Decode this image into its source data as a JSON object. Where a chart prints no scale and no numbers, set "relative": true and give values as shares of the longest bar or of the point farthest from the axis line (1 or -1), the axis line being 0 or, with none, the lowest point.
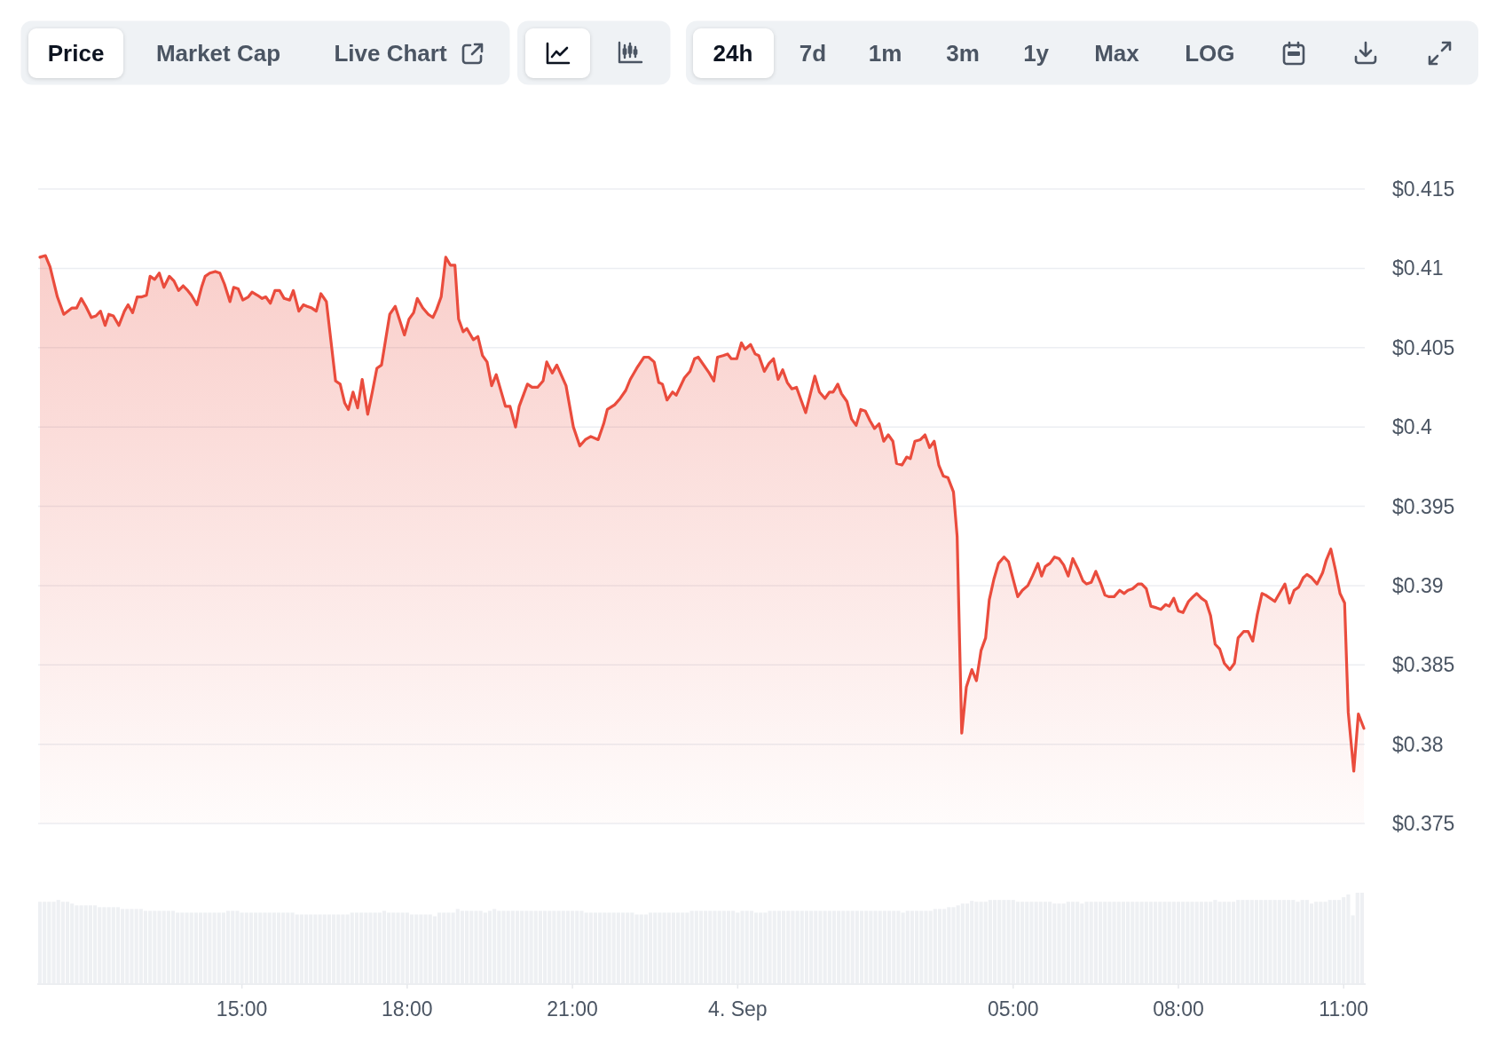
{
  "chart_data": [
    {
      "type": "area",
      "annotations": [
        "Price",
        "Market Cap",
        "Live Chart",
        "24h",
        "7d",
        "1m",
        "3m",
        "1y",
        "Max",
        "LOG"
      ],
      "color": "#ea4c3d",
      "xlim": [
        "--09-03T11:20",
        "--09-04T11:22"
      ],
      "ylim": [
        0.375,
        0.415
      ],
      "yticks": [
        {
          "value": 0.375,
          "label": "$0.375"
        },
        {
          "value": 0.38,
          "label": "$0.38"
        },
        {
          "value": 0.385,
          "label": "$0.385"
        },
        {
          "value": 0.39,
          "label": "$0.39"
        },
        {
          "value": 0.395,
          "label": "$0.395"
        },
        {
          "value": 0.4,
          "label": "$0.4"
        },
        {
          "value": 0.405,
          "label": "$0.405"
        },
        {
          "value": 0.41,
          "label": "$0.41"
        },
        {
          "value": 0.415,
          "label": "$0.415"
        }
      ],
      "grid": "y",
      "tick_labels": "y",
      "x": [
        "--09-03T11:20",
        "--09-03T11:26",
        "--09-03T11:31",
        "--09-03T11:39",
        "--09-03T11:46",
        "--09-03T11:55",
        "--09-03T12:00",
        "--09-03T12:05",
        "--09-03T12:10",
        "--09-03T12:16",
        "--09-03T12:21",
        "--09-03T12:26",
        "--09-03T12:31",
        "--09-03T12:35",
        "--09-03T12:40",
        "--09-03T12:46",
        "--09-03T12:52",
        "--09-03T12:56",
        "--09-03T13:01",
        "--09-03T13:06",
        "--09-03T13:11",
        "--09-03T13:16",
        "--09-03T13:20",
        "--09-03T13:25",
        "--09-03T13:30",
        "--09-03T13:35",
        "--09-03T13:41",
        "--09-03T13:46",
        "--09-03T13:51",
        "--09-03T13:56",
        "--09-03T14:01",
        "--09-03T14:05",
        "--09-03T14:11",
        "--09-03T14:16",
        "--09-03T14:20",
        "--09-03T14:25",
        "--09-03T14:31",
        "--09-03T14:36",
        "--09-03T14:41",
        "--09-03T14:47",
        "--09-03T14:51",
        "--09-03T14:56",
        "--09-03T15:01",
        "--09-03T15:07",
        "--09-03T15:11",
        "--09-03T15:17",
        "--09-03T15:22",
        "--09-03T15:26",
        "--09-03T15:31",
        "--09-03T15:36",
        "--09-03T15:41",
        "--09-03T15:46",
        "--09-03T15:52",
        "--09-03T15:56",
        "--09-03T16:02",
        "--09-03T16:07",
        "--09-03T16:11",
        "--09-03T16:16",
        "--09-03T16:21",
        "--09-03T16:26",
        "--09-03T16:32",
        "--09-03T16:37",
        "--09-03T16:42",
        "--09-03T16:47",
        "--09-03T16:52",
        "--09-03T16:56",
        "--09-03T17:01",
        "--09-03T17:06",
        "--09-03T17:11",
        "--09-03T17:17",
        "--09-03T17:22",
        "--09-03T17:27",
        "--09-03T17:32",
        "--09-03T17:41",
        "--09-03T17:47",
        "--09-03T17:57",
        "--09-03T18:02",
        "--09-03T18:07",
        "--09-03T18:11",
        "--09-03T18:17",
        "--09-03T18:23",
        "--09-03T18:28",
        "--09-03T18:32",
        "--09-03T18:37",
        "--09-03T18:42",
        "--09-03T18:47",
        "--09-03T18:52",
        "--09-03T18:56",
        "--09-03T19:01",
        "--09-03T19:05",
        "--09-03T19:12",
        "--09-03T19:17",
        "--09-03T19:22",
        "--09-03T19:27",
        "--09-03T19:32",
        "--09-03T19:37",
        "--09-03T19:47",
        "--09-03T19:52",
        "--09-03T19:58",
        "--09-03T20:02",
        "--09-03T20:11",
        "--09-03T20:16",
        "--09-03T20:22",
        "--09-03T20:28",
        "--09-03T20:32",
        "--09-03T20:38",
        "--09-03T20:43",
        "--09-03T20:53",
        "--09-03T21:01",
        "--09-03T21:08",
        "--09-03T21:14",
        "--09-03T21:20",
        "--09-03T21:28",
        "--09-03T21:34",
        "--09-03T21:38",
        "--09-03T21:46",
        "--09-03T21:52",
        "--09-03T21:58",
        "--09-03T22:03",
        "--09-03T22:10",
        "--09-03T22:18",
        "--09-03T22:23",
        "--09-03T22:29",
        "--09-03T22:34",
        "--09-03T22:38",
        "--09-03T22:43",
        "--09-03T22:49",
        "--09-03T22:53",
        "--09-03T23:02",
        "--09-03T23:08",
        "--09-03T23:13",
        "--09-03T23:17",
        "--09-03T23:29",
        "--09-03T23:34",
        "--09-03T23:38",
        "--09-03T23:44",
        "--09-03T23:49",
        "--09-03T23:53",
        "--09-03T23:59",
        "--09-04T00:04",
        "--09-04T00:08",
        "--09-04T00:14",
        "--09-04T00:19",
        "--09-04T00:23",
        "--09-04T00:29",
        "--09-04T00:34",
        "--09-04T00:39",
        "--09-04T00:44",
        "--09-04T00:49",
        "--09-04T00:54",
        "--09-04T00:59",
        "--09-04T01:04",
        "--09-04T01:14",
        "--09-04T01:24",
        "--09-04T01:29",
        "--09-04T01:35",
        "--09-04T01:40",
        "--09-04T01:44",
        "--09-04T01:49",
        "--09-04T01:53",
        "--09-04T01:59",
        "--09-04T02:04",
        "--09-04T02:09",
        "--09-04T02:14",
        "--09-04T02:19",
        "--09-04T02:24",
        "--09-04T02:29",
        "--09-04T02:34",
        "--09-04T02:39",
        "--09-04T02:44",
        "--09-04T02:49",
        "--09-04T02:53",
        "--09-04T02:59",
        "--09-04T03:04",
        "--09-04T03:08",
        "--09-04T03:13",
        "--09-04T03:19",
        "--09-04T03:24",
        "--09-04T03:29",
        "--09-04T03:34",
        "--09-04T03:39",
        "--09-04T03:44",
        "--09-04T03:49",
        "--09-04T03:55",
        "--09-04T03:59",
        "--09-04T04:04",
        "--09-04T04:09",
        "--09-04T04:15",
        "--09-04T04:20",
        "--09-04T04:25",
        "--09-04T04:30",
        "--09-04T04:34",
        "--09-04T04:39",
        "--09-04T04:44",
        "--09-04T04:50",
        "--09-04T04:55",
        "--09-04T05:05",
        "--09-04T05:10",
        "--09-04T05:16",
        "--09-04T05:21",
        "--09-04T05:27",
        "--09-04T05:31",
        "--09-04T05:35",
        "--09-04T05:40",
        "--09-04T05:45",
        "--09-04T05:50",
        "--09-04T05:55",
        "--09-04T06:00",
        "--09-04T06:05",
        "--09-04T06:11",
        "--09-04T06:16",
        "--09-04T06:20",
        "--09-04T06:25",
        "--09-04T06:30",
        "--09-04T06:35",
        "--09-04T06:40",
        "--09-04T06:44",
        "--09-04T06:50",
        "--09-04T06:56",
        "--09-04T07:01",
        "--09-04T07:05",
        "--09-04T07:10",
        "--09-04T07:16",
        "--09-04T07:20",
        "--09-04T07:25",
        "--09-04T07:30",
        "--09-04T07:36",
        "--09-04T07:41",
        "--09-04T07:46",
        "--09-04T07:50",
        "--09-04T07:55",
        "--09-04T08:00",
        "--09-04T08:05",
        "--09-04T08:11",
        "--09-04T08:16",
        "--09-04T08:20",
        "--09-04T08:25",
        "--09-04T08:30",
        "--09-04T08:35",
        "--09-04T08:40",
        "--09-04T08:45",
        "--09-04T08:50",
        "--09-04T08:56",
        "--09-04T09:01",
        "--09-04T09:05",
        "--09-04T09:11",
        "--09-04T09:16",
        "--09-04T09:21",
        "--09-04T09:26",
        "--09-04T09:31",
        "--09-04T09:35",
        "--09-04T09:45",
        "--09-04T09:51",
        "--09-04T09:56",
        "--09-04T10:01",
        "--09-04T10:06",
        "--09-04T10:11",
        "--09-04T10:16",
        "--09-04T10:20",
        "--09-04T10:25",
        "--09-04T10:31",
        "--09-04T10:37",
        "--09-04T10:41",
        "--09-04T10:46",
        "--09-04T10:51",
        "--09-04T10:56",
        "--09-04T11:01",
        "--09-04T11:05",
        "--09-04T11:11",
        "--09-04T11:16",
        "--09-04T11:22"
      ],
      "values": [
        0.4107,
        0.4108,
        0.4101,
        0.4082,
        0.4071,
        0.4075,
        0.4075,
        0.4081,
        0.4076,
        0.4069,
        0.407,
        0.4073,
        0.4064,
        0.4071,
        0.407,
        0.4064,
        0.4073,
        0.4077,
        0.4072,
        0.4082,
        0.4082,
        0.4083,
        0.4095,
        0.4093,
        0.4097,
        0.4088,
        0.4095,
        0.4092,
        0.4086,
        0.4089,
        0.4086,
        0.4083,
        0.4077,
        0.4088,
        0.4095,
        0.4097,
        0.4098,
        0.4097,
        0.409,
        0.4079,
        0.4088,
        0.4087,
        0.408,
        0.4082,
        0.4085,
        0.4083,
        0.4081,
        0.4082,
        0.4078,
        0.4086,
        0.4086,
        0.4081,
        0.408,
        0.4086,
        0.4073,
        0.4077,
        0.4076,
        0.4075,
        0.4073,
        0.4084,
        0.4079,
        0.4054,
        0.4029,
        0.4027,
        0.4015,
        0.4011,
        0.4022,
        0.4012,
        0.403,
        0.4008,
        0.4022,
        0.4037,
        0.4039,
        0.4071,
        0.4076,
        0.4058,
        0.4068,
        0.4072,
        0.4081,
        0.4075,
        0.4071,
        0.4069,
        0.4074,
        0.4082,
        0.4107,
        0.4102,
        0.4102,
        0.4068,
        0.406,
        0.4062,
        0.4055,
        0.4057,
        0.4045,
        0.4041,
        0.4026,
        0.4033,
        0.4013,
        0.4013,
        0.4,
        0.4013,
        0.4027,
        0.4025,
        0.4025,
        0.4029,
        0.4041,
        0.4034,
        0.4039,
        0.4026,
        0.4,
        0.3988,
        0.3992,
        0.3994,
        0.3992,
        0.4002,
        0.4011,
        0.4014,
        0.4018,
        0.4023,
        0.403,
        0.4037,
        0.4044,
        0.4044,
        0.4041,
        0.4028,
        0.4027,
        0.4017,
        0.4022,
        0.402,
        0.4031,
        0.4035,
        0.4043,
        0.4044,
        0.4034,
        0.4029,
        0.4044,
        0.4045,
        0.4046,
        0.4043,
        0.4043,
        0.4053,
        0.4049,
        0.4052,
        0.4046,
        0.4045,
        0.4035,
        0.404,
        0.4043,
        0.403,
        0.4036,
        0.4028,
        0.4024,
        0.4025,
        0.4009,
        0.4032,
        0.4022,
        0.4018,
        0.4022,
        0.4022,
        0.4027,
        0.4021,
        0.4016,
        0.4005,
        0.4001,
        0.4011,
        0.401,
        0.4004,
        0.3999,
        0.4002,
        0.3991,
        0.3995,
        0.3991,
        0.3977,
        0.3976,
        0.3981,
        0.398,
        0.3991,
        0.3992,
        0.3995,
        0.3987,
        0.3991,
        0.3976,
        0.3969,
        0.3968,
        0.3959,
        0.3931,
        0.3807,
        0.3836,
        0.3847,
        0.384,
        0.3859,
        0.3867,
        0.3891,
        0.3904,
        0.3914,
        0.3918,
        0.3915,
        0.3893,
        0.3897,
        0.39,
        0.3906,
        0.3914,
        0.3906,
        0.3912,
        0.3914,
        0.3918,
        0.3917,
        0.3913,
        0.3906,
        0.3917,
        0.391,
        0.3903,
        0.3901,
        0.3902,
        0.3909,
        0.3902,
        0.3894,
        0.3893,
        0.3893,
        0.3897,
        0.3895,
        0.3897,
        0.3898,
        0.3901,
        0.3901,
        0.3898,
        0.3887,
        0.3886,
        0.3885,
        0.3888,
        0.3887,
        0.3892,
        0.3884,
        0.3883,
        0.389,
        0.3893,
        0.3895,
        0.3892,
        0.389,
        0.3881,
        0.3863,
        0.386,
        0.3851,
        0.3847,
        0.3851,
        0.3867,
        0.3871,
        0.3871,
        0.3865,
        0.3882,
        0.3895,
        0.3894,
        0.389,
        0.3896,
        0.3901,
        0.3889,
        0.3897,
        0.3899,
        0.3905,
        0.3907,
        0.3905,
        0.3901,
        0.3908,
        0.3916,
        0.3923,
        0.391,
        0.3895,
        0.3889,
        0.382,
        0.3783,
        0.3819,
        0.381
      ]
    },
    {
      "type": "bar",
      "relative": true,
      "color": "#eef0f3",
      "tick_labels": "x",
      "xlim": [
        "--09-03T11:20",
        "--09-04T11:22"
      ],
      "xticks": [
        {
          "value": "--09-03T15:00",
          "label": "15:00"
        },
        {
          "value": "--09-03T18:00",
          "label": "18:00"
        },
        {
          "value": "--09-03T21:00",
          "label": "21:00"
        },
        {
          "value": "--09-04",
          "label": "4. Sep"
        },
        {
          "value": "--09-04T05:00",
          "label": "05:00"
        },
        {
          "value": "--09-04T08:00",
          "label": "08:00"
        },
        {
          "value": "--09-04T11:00",
          "label": "11:00"
        }
      ],
      "x": [
        "--09-03T11:20",
        "--09-03T11:25",
        "--09-03T11:30",
        "--09-03T11:35",
        "--09-03T11:40",
        "--09-03T11:45",
        "--09-03T11:50",
        "--09-03T11:55",
        "--09-03T12:00",
        "--09-03T12:05",
        "--09-03T12:10",
        "--09-03T12:15",
        "--09-03T12:20",
        "--09-03T12:25",
        "--09-03T12:30",
        "--09-03T12:35",
        "--09-03T12:40",
        "--09-03T12:45",
        "--09-03T12:50",
        "--09-03T12:55",
        "--09-03T13:00",
        "--09-03T13:05",
        "--09-03T13:10",
        "--09-03T13:15",
        "--09-03T13:20",
        "--09-03T13:25",
        "--09-03T13:30",
        "--09-03T13:35",
        "--09-03T13:40",
        "--09-03T13:45",
        "--09-03T13:50",
        "--09-03T13:55",
        "--09-03T14:00",
        "--09-03T14:05",
        "--09-03T14:10",
        "--09-03T14:15",
        "--09-03T14:20",
        "--09-03T14:25",
        "--09-03T14:30",
        "--09-03T14:35",
        "--09-03T14:40",
        "--09-03T14:45",
        "--09-03T14:50",
        "--09-03T14:55",
        "--09-03T15:00",
        "--09-03T15:05",
        "--09-03T15:10",
        "--09-03T15:15",
        "--09-03T15:20",
        "--09-03T15:25",
        "--09-03T15:30",
        "--09-03T15:35",
        "--09-03T15:40",
        "--09-03T15:45",
        "--09-03T15:50",
        "--09-03T15:55",
        "--09-03T16:00",
        "--09-03T16:05",
        "--09-03T16:10",
        "--09-03T16:15",
        "--09-03T16:20",
        "--09-03T16:25",
        "--09-03T16:30",
        "--09-03T16:35",
        "--09-03T16:40",
        "--09-03T16:45",
        "--09-03T16:50",
        "--09-03T16:55",
        "--09-03T17:00",
        "--09-03T17:05",
        "--09-03T17:10",
        "--09-03T17:15",
        "--09-03T17:20",
        "--09-03T17:25",
        "--09-03T17:30",
        "--09-03T17:35",
        "--09-03T17:40",
        "--09-03T17:45",
        "--09-03T17:50",
        "--09-03T17:55",
        "--09-03T18:00",
        "--09-03T18:05",
        "--09-03T18:10",
        "--09-03T18:15",
        "--09-03T18:20",
        "--09-03T18:25",
        "--09-03T18:30",
        "--09-03T18:35",
        "--09-03T18:40",
        "--09-03T18:45",
        "--09-03T18:50",
        "--09-03T18:55",
        "--09-03T19:00",
        "--09-03T19:05",
        "--09-03T19:10",
        "--09-03T19:15",
        "--09-03T19:20",
        "--09-03T19:25",
        "--09-03T19:30",
        "--09-03T19:35",
        "--09-03T19:40",
        "--09-03T19:45",
        "--09-03T19:50",
        "--09-03T19:55",
        "--09-03T20:00",
        "--09-03T20:05",
        "--09-03T20:10",
        "--09-03T20:15",
        "--09-03T20:20",
        "--09-03T20:25",
        "--09-03T20:30",
        "--09-03T20:35",
        "--09-03T20:40",
        "--09-03T20:45",
        "--09-03T20:50",
        "--09-03T20:55",
        "--09-03T21:00",
        "--09-03T21:05",
        "--09-03T21:10",
        "--09-03T21:15",
        "--09-03T21:20",
        "--09-03T21:25",
        "--09-03T21:30",
        "--09-03T21:35",
        "--09-03T21:40",
        "--09-03T21:45",
        "--09-03T21:50",
        "--09-03T21:55",
        "--09-03T22:00",
        "--09-03T22:05",
        "--09-03T22:10",
        "--09-03T22:15",
        "--09-03T22:20",
        "--09-03T22:25",
        "--09-03T22:30",
        "--09-03T22:35",
        "--09-03T22:40",
        "--09-03T22:45",
        "--09-03T22:50",
        "--09-03T22:55",
        "--09-03T23:00",
        "--09-03T23:05",
        "--09-03T23:10",
        "--09-03T23:15",
        "--09-03T23:20",
        "--09-03T23:25",
        "--09-03T23:30",
        "--09-03T23:35",
        "--09-03T23:40",
        "--09-03T23:45",
        "--09-03T23:50",
        "--09-03T23:55",
        "--09-04T00:00",
        "--09-04T00:05",
        "--09-04T00:10",
        "--09-04T00:15",
        "--09-04T00:20",
        "--09-04T00:25",
        "--09-04T00:30",
        "--09-04T00:35",
        "--09-04T00:40",
        "--09-04T00:45",
        "--09-04T00:50",
        "--09-04T00:55",
        "--09-04T01:00",
        "--09-04T01:05",
        "--09-04T01:10",
        "--09-04T01:15",
        "--09-04T01:20",
        "--09-04T01:25",
        "--09-04T01:30",
        "--09-04T01:35",
        "--09-04T01:40",
        "--09-04T01:45",
        "--09-04T01:50",
        "--09-04T01:55",
        "--09-04T02:00",
        "--09-04T02:05",
        "--09-04T02:10",
        "--09-04T02:15",
        "--09-04T02:20",
        "--09-04T02:25",
        "--09-04T02:30",
        "--09-04T02:35",
        "--09-04T02:40",
        "--09-04T02:45",
        "--09-04T02:50",
        "--09-04T02:55",
        "--09-04T03:00",
        "--09-04T03:05",
        "--09-04T03:10",
        "--09-04T03:15",
        "--09-04T03:20",
        "--09-04T03:25",
        "--09-04T03:30",
        "--09-04T03:35",
        "--09-04T03:40",
        "--09-04T03:45",
        "--09-04T03:50",
        "--09-04T03:55",
        "--09-04T04:00",
        "--09-04T04:05",
        "--09-04T04:10",
        "--09-04T04:15",
        "--09-04T04:20",
        "--09-04T04:25",
        "--09-04T04:30",
        "--09-04T04:35",
        "--09-04T04:40",
        "--09-04T04:45",
        "--09-04T04:50",
        "--09-04T04:55",
        "--09-04T05:00",
        "--09-04T05:05",
        "--09-04T05:10",
        "--09-04T05:15",
        "--09-04T05:20",
        "--09-04T05:25",
        "--09-04T05:30",
        "--09-04T05:35",
        "--09-04T05:40",
        "--09-04T05:45",
        "--09-04T05:50",
        "--09-04T05:55",
        "--09-04T06:00",
        "--09-04T06:05",
        "--09-04T06:10",
        "--09-04T06:15",
        "--09-04T06:20",
        "--09-04T06:25",
        "--09-04T06:30",
        "--09-04T06:35",
        "--09-04T06:40",
        "--09-04T06:45",
        "--09-04T06:50",
        "--09-04T06:55",
        "--09-04T07:00",
        "--09-04T07:05",
        "--09-04T07:10",
        "--09-04T07:15",
        "--09-04T07:20",
        "--09-04T07:25",
        "--09-04T07:30",
        "--09-04T07:35",
        "--09-04T07:40",
        "--09-04T07:45",
        "--09-04T07:50",
        "--09-04T07:55",
        "--09-04T08:00",
        "--09-04T08:05",
        "--09-04T08:10",
        "--09-04T08:15",
        "--09-04T08:20",
        "--09-04T08:25",
        "--09-04T08:30",
        "--09-04T08:35",
        "--09-04T08:40",
        "--09-04T08:45",
        "--09-04T08:50",
        "--09-04T08:55",
        "--09-04T09:00",
        "--09-04T09:05",
        "--09-04T09:10",
        "--09-04T09:15",
        "--09-04T09:20",
        "--09-04T09:25",
        "--09-04T09:30",
        "--09-04T09:35",
        "--09-04T09:40",
        "--09-04T09:45",
        "--09-04T09:50",
        "--09-04T09:55",
        "--09-04T10:00",
        "--09-04T10:05",
        "--09-04T10:10",
        "--09-04T10:15",
        "--09-04T10:20",
        "--09-04T10:25",
        "--09-04T10:30",
        "--09-04T10:35",
        "--09-04T10:40",
        "--09-04T10:45",
        "--09-04T10:50",
        "--09-04T10:55",
        "--09-04T11:00",
        "--09-04T11:05",
        "--09-04T11:10",
        "--09-04T11:15",
        "--09-04T11:20"
      ],
      "values": [
        0.9,
        0.9,
        0.9,
        0.9,
        0.92,
        0.9,
        0.9,
        0.88,
        0.86,
        0.86,
        0.86,
        0.86,
        0.86,
        0.84,
        0.84,
        0.84,
        0.84,
        0.84,
        0.82,
        0.82,
        0.82,
        0.82,
        0.82,
        0.8,
        0.8,
        0.8,
        0.8,
        0.8,
        0.8,
        0.8,
        0.78,
        0.78,
        0.78,
        0.78,
        0.78,
        0.78,
        0.78,
        0.78,
        0.78,
        0.78,
        0.78,
        0.8,
        0.8,
        0.8,
        0.78,
        0.78,
        0.78,
        0.78,
        0.78,
        0.78,
        0.78,
        0.78,
        0.78,
        0.78,
        0.78,
        0.78,
        0.76,
        0.76,
        0.76,
        0.76,
        0.76,
        0.76,
        0.76,
        0.76,
        0.76,
        0.76,
        0.76,
        0.76,
        0.78,
        0.78,
        0.78,
        0.78,
        0.78,
        0.78,
        0.78,
        0.8,
        0.78,
        0.78,
        0.78,
        0.78,
        0.78,
        0.76,
        0.76,
        0.76,
        0.76,
        0.76,
        0.74,
        0.78,
        0.78,
        0.78,
        0.78,
        0.82,
        0.8,
        0.8,
        0.8,
        0.8,
        0.8,
        0.78,
        0.8,
        0.82,
        0.8,
        0.8,
        0.8,
        0.8,
        0.8,
        0.8,
        0.8,
        0.8,
        0.8,
        0.8,
        0.8,
        0.8,
        0.8,
        0.8,
        0.8,
        0.8,
        0.8,
        0.8,
        0.8,
        0.78,
        0.78,
        0.78,
        0.78,
        0.78,
        0.78,
        0.78,
        0.78,
        0.78,
        0.78,
        0.78,
        0.76,
        0.76,
        0.76,
        0.78,
        0.78,
        0.78,
        0.78,
        0.78,
        0.78,
        0.78,
        0.78,
        0.78,
        0.8,
        0.8,
        0.8,
        0.8,
        0.8,
        0.8,
        0.8,
        0.8,
        0.8,
        0.8,
        0.78,
        0.8,
        0.8,
        0.8,
        0.78,
        0.78,
        0.78,
        0.8,
        0.8,
        0.8,
        0.8,
        0.8,
        0.8,
        0.8,
        0.8,
        0.8,
        0.8,
        0.8,
        0.8,
        0.8,
        0.8,
        0.8,
        0.8,
        0.8,
        0.8,
        0.8,
        0.8,
        0.8,
        0.8,
        0.8,
        0.8,
        0.8,
        0.8,
        0.8,
        0.8,
        0.8,
        0.78,
        0.8,
        0.8,
        0.8,
        0.8,
        0.8,
        0.8,
        0.82,
        0.82,
        0.82,
        0.84,
        0.84,
        0.86,
        0.88,
        0.88,
        0.91,
        0.9,
        0.9,
        0.9,
        0.92,
        0.92,
        0.92,
        0.92,
        0.92,
        0.92,
        0.9,
        0.9,
        0.9,
        0.9,
        0.9,
        0.9,
        0.9,
        0.9,
        0.88,
        0.88,
        0.88,
        0.9,
        0.9,
        0.9,
        0.88,
        0.9,
        0.9,
        0.9,
        0.9,
        0.9,
        0.9,
        0.9,
        0.9,
        0.9,
        0.9,
        0.9,
        0.9,
        0.9,
        0.9,
        0.9,
        0.9,
        0.9,
        0.9,
        0.9,
        0.9,
        0.9,
        0.9,
        0.9,
        0.9,
        0.9,
        0.9,
        0.9,
        0.9,
        0.92,
        0.9,
        0.9,
        0.9,
        0.9,
        0.92,
        0.92,
        0.92,
        0.92,
        0.92,
        0.92,
        0.92,
        0.92,
        0.92,
        0.92,
        0.92,
        0.92,
        0.92,
        0.9,
        0.92,
        0.92,
        0.88,
        0.9,
        0.9,
        0.9,
        0.92,
        0.92,
        0.92,
        0.95,
        0.98,
        0.75,
        1,
        1
      ]
    }
  ]
}
